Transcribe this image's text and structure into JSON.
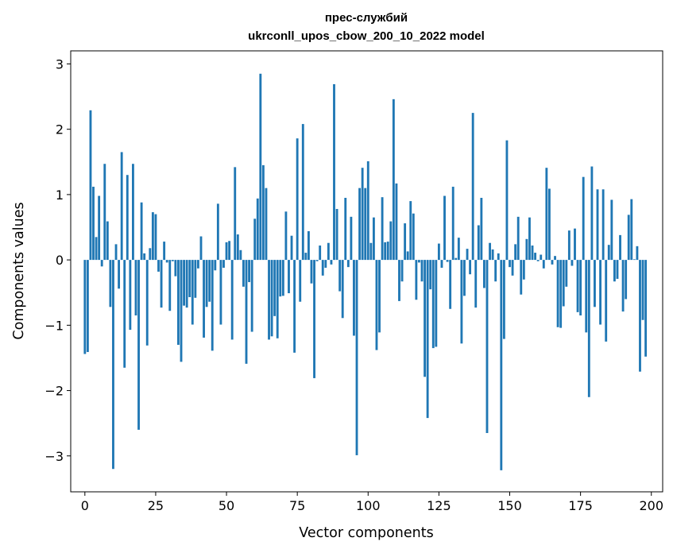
{
  "chart_data": {
    "type": "bar",
    "title": "прес-службий",
    "subtitle": "ukrconll_upos_cbow_200_10_2022 model",
    "xlabel": "Vector components",
    "ylabel": "Components values",
    "xlim": [
      -5,
      204
    ],
    "ylim": [
      -3.55,
      3.2
    ],
    "xticks": [
      0,
      25,
      50,
      75,
      100,
      125,
      150,
      175,
      200
    ],
    "yticks": [
      -3,
      -2,
      -1,
      0,
      1,
      2,
      3
    ],
    "ytick_labels": [
      "−3",
      "−2",
      "−1",
      "0",
      "1",
      "2",
      "3"
    ],
    "bar_color": "#1f77b4",
    "grid": false,
    "values": [
      -1.44,
      -1.41,
      2.29,
      1.12,
      0.35,
      0.98,
      -0.1,
      1.47,
      0.59,
      -0.72,
      -3.2,
      0.24,
      -0.44,
      1.65,
      -1.65,
      1.3,
      -1.07,
      1.47,
      -0.85,
      -2.6,
      0.88,
      0.1,
      -1.31,
      0.18,
      0.73,
      0.7,
      -0.18,
      -0.73,
      0.28,
      -0.04,
      -0.78,
      -0.02,
      -0.25,
      -1.3,
      -1.56,
      -0.7,
      -0.73,
      -0.57,
      -0.99,
      -0.58,
      -0.13,
      0.36,
      -1.19,
      -0.72,
      -0.64,
      -1.39,
      -0.16,
      0.86,
      -0.99,
      -0.12,
      0.27,
      0.29,
      -1.22,
      1.42,
      0.39,
      0.15,
      -0.41,
      -1.59,
      -0.34,
      -1.1,
      0.63,
      0.94,
      2.85,
      1.45,
      1.1,
      -1.22,
      -1.17,
      -0.86,
      -1.2,
      -0.56,
      -0.55,
      0.74,
      -0.51,
      0.37,
      -1.42,
      1.86,
      -0.64,
      2.08,
      0.11,
      0.44,
      -0.36,
      -1.81,
      -0.02,
      0.22,
      -0.24,
      -0.12,
      0.26,
      -0.07,
      2.69,
      0.78,
      -0.48,
      -0.89,
      0.95,
      -0.11,
      0.66,
      -1.16,
      -2.99,
      1.1,
      1.41,
      1.1,
      1.51,
      0.26,
      0.65,
      -1.38,
      -1.11,
      0.96,
      0.27,
      0.28,
      0.59,
      2.46,
      1.17,
      -0.63,
      -0.33,
      0.56,
      0.13,
      0.9,
      0.71,
      -0.61,
      -0.04,
      -0.33,
      -1.79,
      -2.42,
      -0.45,
      -1.35,
      -1.33,
      0.25,
      -0.12,
      0.98,
      -0.03,
      -0.75,
      1.12,
      0.03,
      0.34,
      -1.28,
      -0.55,
      0.17,
      -0.22,
      2.25,
      -0.73,
      0.53,
      0.95,
      -0.43,
      -2.65,
      0.26,
      0.16,
      -0.33,
      0.1,
      -3.22,
      -1.21,
      1.83,
      -0.11,
      -0.24,
      0.24,
      0.66,
      -0.53,
      -0.3,
      0.32,
      0.65,
      0.22,
      0.11,
      -0.02,
      0.08,
      -0.13,
      1.41,
      1.09,
      -0.07,
      0.06,
      -1.03,
      -1.04,
      -0.71,
      -0.41,
      0.45,
      -0.09,
      0.48,
      -0.8,
      -0.85,
      1.27,
      -1.11,
      -2.1,
      1.43,
      -0.72,
      1.08,
      -0.99,
      1.08,
      -1.25,
      0.23,
      0.92,
      -0.33,
      -0.29,
      0.38,
      -0.79,
      -0.6,
      0.69,
      0.93,
      0.01,
      0.21,
      -1.71,
      -0.92,
      -1.48
    ]
  }
}
